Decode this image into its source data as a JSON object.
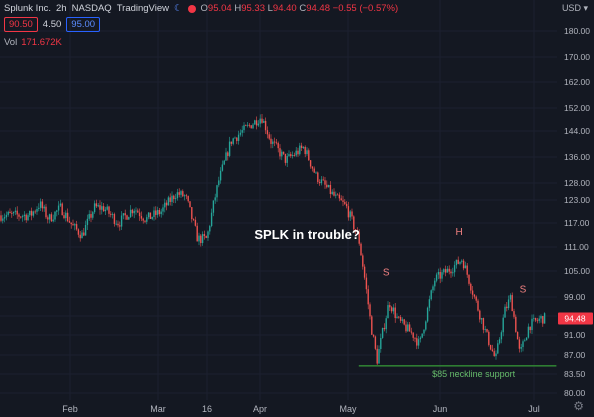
{
  "header": {
    "symbol": "Splunk Inc.",
    "interval": "2h",
    "exchange": "NASDAQ",
    "source": "TradingView",
    "open_label": "O",
    "open": "95.04",
    "high_label": "H",
    "high": "95.33",
    "low_label": "L",
    "low": "94.40",
    "close_label": "C",
    "close": "94.48",
    "change": "−0.55 (−0.57%)",
    "bid": "90.50",
    "spread": "4.50",
    "ask": "95.00",
    "volume_label": "Vol",
    "volume": "171.672K",
    "currency": "USD"
  },
  "colors": {
    "background": "#141822",
    "up": "#26a69a",
    "down": "#ef5350",
    "support": "#2e7d32",
    "annotation_pattern": "#f08080",
    "current_price": "#f23645"
  },
  "chart_data": {
    "type": "candlestick",
    "yscale": "linear",
    "ylim": [
      80,
      183
    ],
    "y_ticks": [
      "180.00",
      "170.00",
      "162.00",
      "152.00",
      "144.00",
      "136.00",
      "128.00",
      "123.00",
      "117.00",
      "111.00",
      "105.00",
      "99.00",
      "95.00",
      "91.00",
      "87.00",
      "83.50",
      "80.00"
    ],
    "x_ticks": [
      "Feb",
      "Mar",
      "16",
      "Apr",
      "May",
      "Jun",
      "Jul"
    ],
    "current_price_label": "94.48",
    "price_path": [
      {
        "x": "Jan 19",
        "y": 119
      },
      {
        "x": "Jan 22",
        "y": 122
      },
      {
        "x": "Jan 25",
        "y": 118
      },
      {
        "x": "Jan 29",
        "y": 121
      },
      {
        "x": "Feb 2",
        "y": 116
      },
      {
        "x": "Feb 5",
        "y": 114
      },
      {
        "x": "Feb 9",
        "y": 121
      },
      {
        "x": "Feb 12",
        "y": 121
      },
      {
        "x": "Feb 17",
        "y": 117
      },
      {
        "x": "Feb 22",
        "y": 121
      },
      {
        "x": "Feb 26",
        "y": 118
      },
      {
        "x": "Mar 3",
        "y": 120
      },
      {
        "x": "Mar 8",
        "y": 125
      },
      {
        "x": "Mar 11",
        "y": 124
      },
      {
        "x": "Mar 15",
        "y": 113
      },
      {
        "x": "Mar 18",
        "y": 113
      },
      {
        "x": "Mar 22",
        "y": 129
      },
      {
        "x": "Mar 26",
        "y": 141
      },
      {
        "x": "Mar 31",
        "y": 145
      },
      {
        "x": "Apr 5",
        "y": 149
      },
      {
        "x": "Apr 8",
        "y": 141
      },
      {
        "x": "Apr 13",
        "y": 135
      },
      {
        "x": "Apr 19",
        "y": 139
      },
      {
        "x": "Apr 23",
        "y": 130
      },
      {
        "x": "Apr 29",
        "y": 124
      },
      {
        "x": "May 3",
        "y": 121
      },
      {
        "x": "May 7",
        "y": 113
      },
      {
        "x": "May 11",
        "y": 93
      },
      {
        "x": "May 13",
        "y": 86
      },
      {
        "x": "May 17",
        "y": 98
      },
      {
        "x": "May 20",
        "y": 94
      },
      {
        "x": "May 25",
        "y": 91
      },
      {
        "x": "May 27",
        "y": 89
      },
      {
        "x": "Jun 1",
        "y": 103
      },
      {
        "x": "Jun 7",
        "y": 106
      },
      {
        "x": "Jun 10",
        "y": 108
      },
      {
        "x": "Jun 14",
        "y": 99
      },
      {
        "x": "Jun 18",
        "y": 91
      },
      {
        "x": "Jun 21",
        "y": 86
      },
      {
        "x": "Jun 24",
        "y": 96
      },
      {
        "x": "Jun 26",
        "y": 99
      },
      {
        "x": "Jun 29",
        "y": 87
      },
      {
        "x": "Jul 2",
        "y": 93
      },
      {
        "x": "Jul 6",
        "y": 94.5
      }
    ],
    "annotations": [
      {
        "text": "SPLK in trouble?",
        "x": "Apr 20",
        "y": 113
      },
      {
        "text": "S",
        "x": "May 16",
        "y": 104
      },
      {
        "text": "H",
        "x": "Jun 9",
        "y": 114
      },
      {
        "text": "S",
        "x": "Jun 30",
        "y": 100
      }
    ],
    "support_line": {
      "label": "$85 neckline support",
      "y": 85,
      "x_start": "May 7",
      "x_end": "Jul 11"
    }
  }
}
